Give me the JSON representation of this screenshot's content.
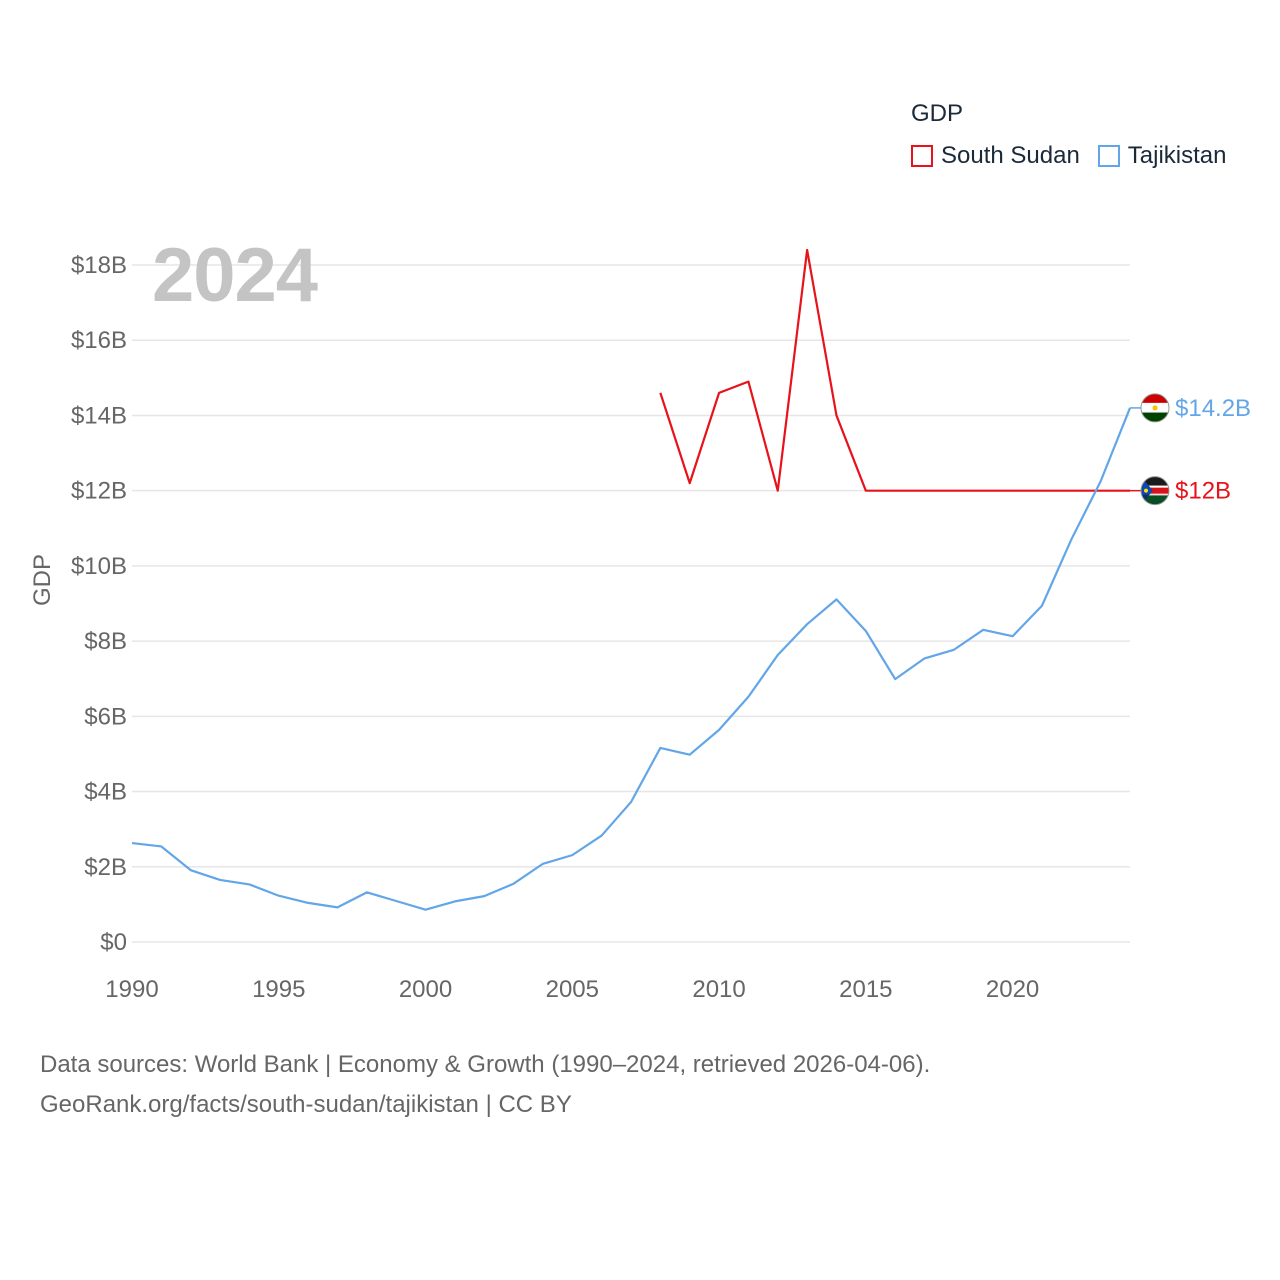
{
  "legend": {
    "title": "GDP",
    "items": [
      {
        "label": "South Sudan",
        "color": "#e8121a"
      },
      {
        "label": "Tajikistan",
        "color": "#62a6e8"
      }
    ]
  },
  "year_label": "2024",
  "source": {
    "line1": "Data sources: World Bank | Economy & Growth (1990–2024, retrieved 2026-04-06).",
    "line2": "GeoRank.org/facts/south-sudan/tajikistan | CC BY"
  },
  "chart_data": {
    "type": "line",
    "title": "",
    "xlabel": "",
    "ylabel": "GDP",
    "xlim": [
      1990,
      2024
    ],
    "ylim": [
      0,
      18
    ],
    "y_unit": "billion USD",
    "x_ticks": [
      1990,
      1995,
      2000,
      2005,
      2010,
      2015,
      2020
    ],
    "y_ticks": [
      {
        "value": 0,
        "label": "$0"
      },
      {
        "value": 2,
        "label": "$2B"
      },
      {
        "value": 4,
        "label": "$4B"
      },
      {
        "value": 6,
        "label": "$6B"
      },
      {
        "value": 8,
        "label": "$8B"
      },
      {
        "value": 10,
        "label": "$10B"
      },
      {
        "value": 12,
        "label": "$12B"
      },
      {
        "value": 14,
        "label": "$14B"
      },
      {
        "value": 16,
        "label": "$16B"
      },
      {
        "value": 18,
        "label": "$18B"
      }
    ],
    "grid": true,
    "legend_position": "top-right",
    "series": [
      {
        "name": "South Sudan",
        "color": "#e8121a",
        "x": [
          2008,
          2009,
          2010,
          2011,
          2012,
          2013,
          2014,
          2015,
          2016,
          2017,
          2018,
          2019,
          2020,
          2021,
          2022,
          2023,
          2024
        ],
        "values": [
          14.6,
          12.2,
          14.6,
          14.9,
          12.0,
          18.4,
          14.0,
          12.0,
          12.0,
          12.0,
          12.0,
          12.0,
          12.0,
          12.0,
          12.0,
          12.0,
          12.0
        ],
        "end_label": "$12B"
      },
      {
        "name": "Tajikistan",
        "color": "#62a6e8",
        "x": [
          1990,
          1991,
          1992,
          1993,
          1994,
          1995,
          1996,
          1997,
          1998,
          1999,
          2000,
          2001,
          2002,
          2003,
          2004,
          2005,
          2006,
          2007,
          2008,
          2009,
          2010,
          2011,
          2012,
          2013,
          2014,
          2015,
          2016,
          2017,
          2018,
          2019,
          2020,
          2021,
          2022,
          2023,
          2024
        ],
        "values": [
          2.63,
          2.54,
          1.91,
          1.65,
          1.53,
          1.23,
          1.04,
          0.92,
          1.32,
          1.09,
          0.86,
          1.08,
          1.22,
          1.55,
          2.08,
          2.31,
          2.83,
          3.72,
          5.16,
          4.98,
          5.64,
          6.52,
          7.63,
          8.45,
          9.11,
          8.27,
          6.99,
          7.54,
          7.77,
          8.3,
          8.13,
          8.94,
          10.7,
          12.25,
          14.2
        ],
        "end_label": "$14.2B"
      }
    ]
  }
}
